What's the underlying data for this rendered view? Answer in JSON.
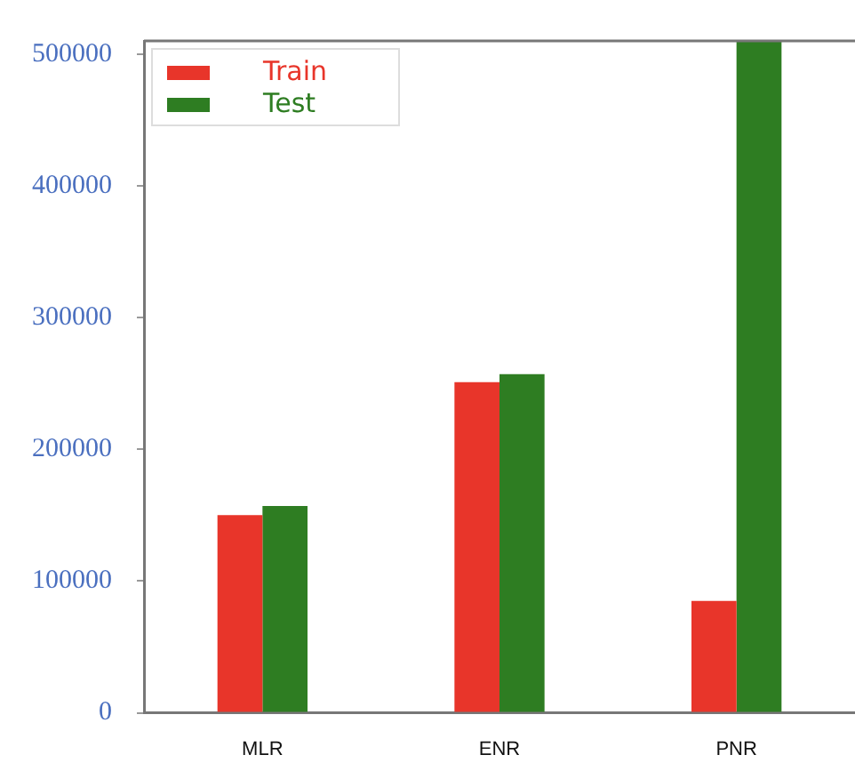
{
  "chart_data": {
    "type": "bar",
    "categories": [
      "MLR",
      "ENR",
      "PNR"
    ],
    "series": [
      {
        "name": "Train",
        "color": "#e8352a",
        "values": [
          150000,
          251000,
          85000
        ]
      },
      {
        "name": "Test",
        "color": "#2e7d22",
        "values": [
          157000,
          257000,
          510000
        ]
      }
    ],
    "ylim": [
      0,
      510000
    ],
    "yticks": [
      0,
      100000,
      200000,
      300000,
      400000,
      500000
    ],
    "grid": false,
    "legend": "top left"
  }
}
